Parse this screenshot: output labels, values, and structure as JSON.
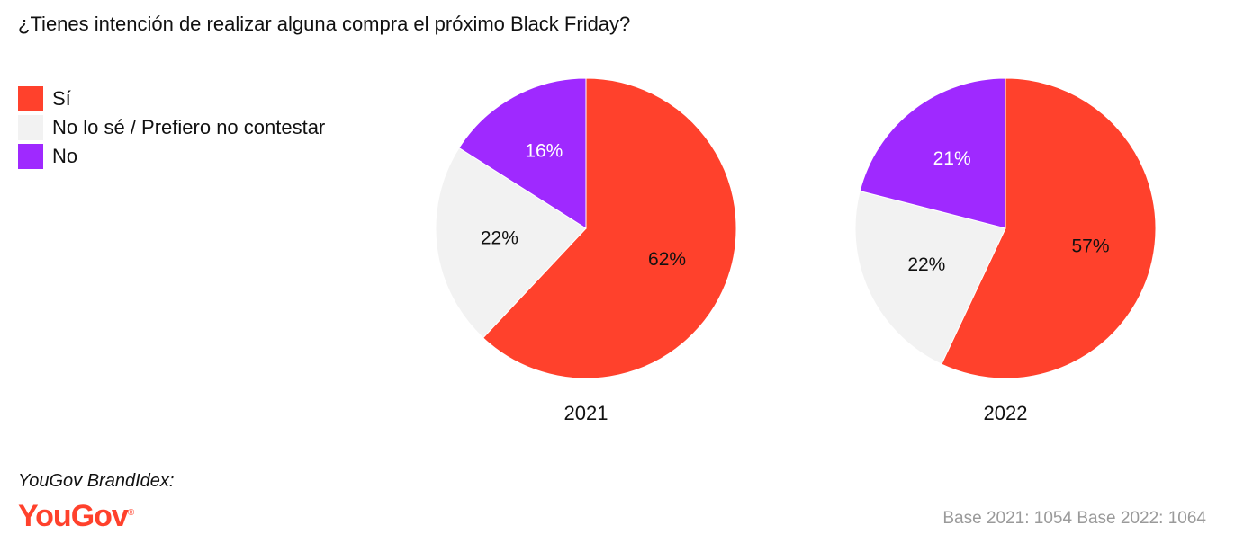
{
  "title": "¿Tienes intención de realizar alguna compra el próximo Black Friday?",
  "colors": {
    "si": "#ff412c",
    "nolose": "#f2f2f2",
    "no": "#9f29ff",
    "brand": "#ff412c"
  },
  "legend": [
    {
      "label": "Sí",
      "key": "si"
    },
    {
      "label": "No lo sé / Prefiero no contestar",
      "key": "nolose"
    },
    {
      "label": "No",
      "key": "no"
    }
  ],
  "chart_data": [
    {
      "type": "pie",
      "title": "2021",
      "slices": [
        {
          "label": "Sí",
          "key": "si",
          "value": 62,
          "text": "62%"
        },
        {
          "label": "No lo sé / Prefiero no contestar",
          "key": "nolose",
          "value": 22,
          "text": "22%"
        },
        {
          "label": "No",
          "key": "no",
          "value": 16,
          "text": "16%"
        }
      ]
    },
    {
      "type": "pie",
      "title": "2022",
      "slices": [
        {
          "label": "Sí",
          "key": "si",
          "value": 57,
          "text": "57%"
        },
        {
          "label": "No lo sé / Prefiero no contestar",
          "key": "nolose",
          "value": 22,
          "text": "22%"
        },
        {
          "label": "No",
          "key": "no",
          "value": 21,
          "text": "21%"
        }
      ]
    }
  ],
  "footer": {
    "source": "YouGov BrandIdex:",
    "logo": "YouGov",
    "logo_mark": "®",
    "base": "Base 2021: 1054 Base 2022: 1064"
  }
}
